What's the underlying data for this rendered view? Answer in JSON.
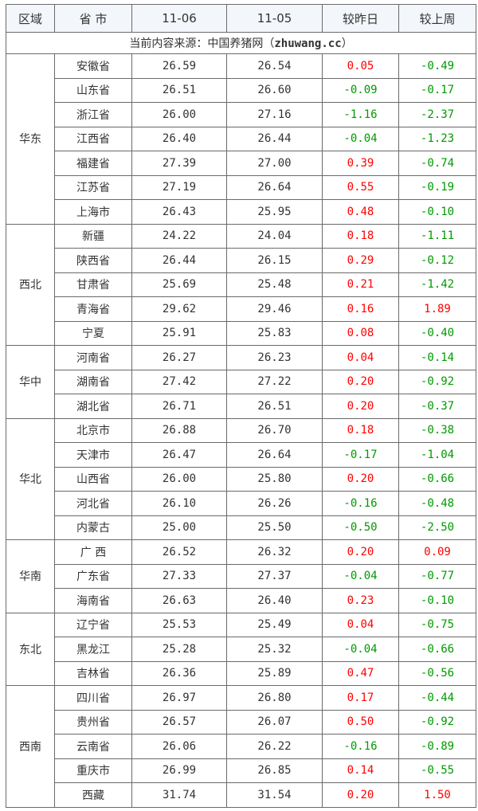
{
  "headers": [
    "区域",
    "省 市",
    "11-06",
    "11-05",
    "较昨日",
    "较上周"
  ],
  "source": {
    "prefix": "当前内容来源：中国养猪网（",
    "site": "zhuwang.cc",
    "suffix": "）"
  },
  "colors": {
    "up": "#ff0000",
    "down": "#009900"
  },
  "regions": [
    {
      "name": "华东",
      "rows": [
        [
          "安徽省",
          "26.59",
          "26.54",
          "0.05",
          "-0.49"
        ],
        [
          "山东省",
          "26.51",
          "26.60",
          "-0.09",
          "-0.17"
        ],
        [
          "浙江省",
          "26.00",
          "27.16",
          "-1.16",
          "-2.37"
        ],
        [
          "江西省",
          "26.40",
          "26.44",
          "-0.04",
          "-1.23"
        ],
        [
          "福建省",
          "27.39",
          "27.00",
          "0.39",
          "-0.74"
        ],
        [
          "江苏省",
          "27.19",
          "26.64",
          "0.55",
          "-0.19"
        ],
        [
          "上海市",
          "26.43",
          "25.95",
          "0.48",
          "-0.10"
        ]
      ]
    },
    {
      "name": "西北",
      "rows": [
        [
          "新疆",
          "24.22",
          "24.04",
          "0.18",
          "-1.11"
        ],
        [
          "陕西省",
          "26.44",
          "26.15",
          "0.29",
          "-0.12"
        ],
        [
          "甘肃省",
          "25.69",
          "25.48",
          "0.21",
          "-1.42"
        ],
        [
          "青海省",
          "29.62",
          "29.46",
          "0.16",
          "1.89"
        ],
        [
          "宁夏",
          "25.91",
          "25.83",
          "0.08",
          "-0.40"
        ]
      ]
    },
    {
      "name": "华中",
      "rows": [
        [
          "河南省",
          "26.27",
          "26.23",
          "0.04",
          "-0.14"
        ],
        [
          "湖南省",
          "27.42",
          "27.22",
          "0.20",
          "-0.92"
        ],
        [
          "湖北省",
          "26.71",
          "26.51",
          "0.20",
          "-0.37"
        ]
      ]
    },
    {
      "name": "华北",
      "rows": [
        [
          "北京市",
          "26.88",
          "26.70",
          "0.18",
          "-0.38"
        ],
        [
          "天津市",
          "26.47",
          "26.64",
          "-0.17",
          "-1.04"
        ],
        [
          "山西省",
          "26.00",
          "25.80",
          "0.20",
          "-0.66"
        ],
        [
          "河北省",
          "26.10",
          "26.26",
          "-0.16",
          "-0.48"
        ],
        [
          "内蒙古",
          "25.00",
          "25.50",
          "-0.50",
          "-2.50"
        ]
      ]
    },
    {
      "name": "华南",
      "rows": [
        [
          "广 西",
          "26.52",
          "26.32",
          "0.20",
          "0.09"
        ],
        [
          "广东省",
          "27.33",
          "27.37",
          "-0.04",
          "-0.77"
        ],
        [
          "海南省",
          "26.63",
          "26.40",
          "0.23",
          "-0.10"
        ]
      ]
    },
    {
      "name": "东北",
      "rows": [
        [
          "辽宁省",
          "25.53",
          "25.49",
          "0.04",
          "-0.75"
        ],
        [
          "黑龙江",
          "25.28",
          "25.32",
          "-0.04",
          "-0.66"
        ],
        [
          "吉林省",
          "26.36",
          "25.89",
          "0.47",
          "-0.56"
        ]
      ]
    },
    {
      "name": "西南",
      "rows": [
        [
          "四川省",
          "26.97",
          "26.80",
          "0.17",
          "-0.44"
        ],
        [
          "贵州省",
          "26.57",
          "26.07",
          "0.50",
          "-0.92"
        ],
        [
          "云南省",
          "26.06",
          "26.22",
          "-0.16",
          "-0.89"
        ],
        [
          "重庆市",
          "26.99",
          "26.85",
          "0.14",
          "-0.55"
        ],
        [
          "西藏",
          "31.74",
          "31.54",
          "0.20",
          "1.50"
        ]
      ]
    }
  ]
}
